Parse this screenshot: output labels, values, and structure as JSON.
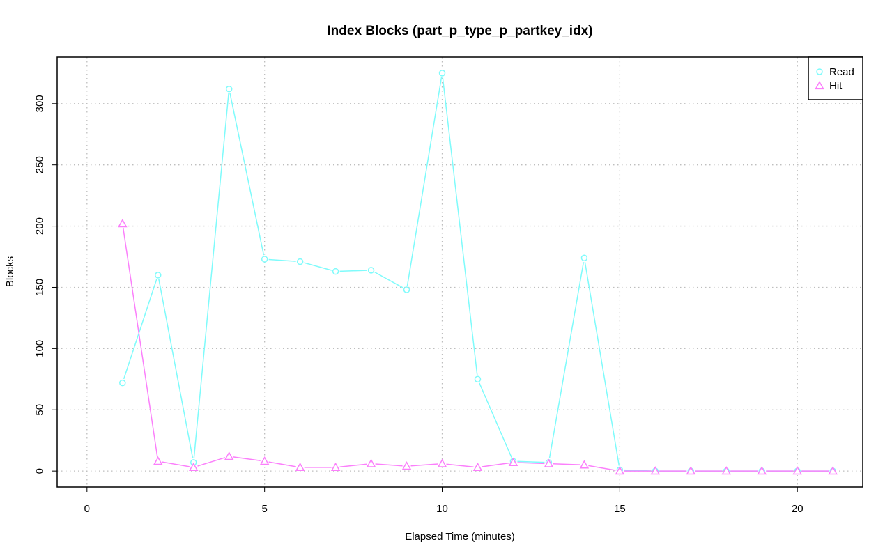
{
  "chart_data": {
    "type": "line",
    "title": "Index Blocks (part_p_type_p_partkey_idx)",
    "xlabel": "Elapsed Time (minutes)",
    "ylabel": "Blocks",
    "xlim": [
      -0.84,
      21.84
    ],
    "ylim": [
      -13,
      338
    ],
    "xticks": [
      0,
      5,
      10,
      15,
      20
    ],
    "yticks": [
      0,
      50,
      100,
      150,
      200,
      250,
      300
    ],
    "grid": true,
    "legend_position": "top-right",
    "x": [
      1,
      2,
      3,
      4,
      5,
      6,
      7,
      8,
      9,
      10,
      11,
      12,
      13,
      14,
      15,
      16,
      17,
      18,
      19,
      20,
      21
    ],
    "series": [
      {
        "name": "Read",
        "color": "#7ffbfb",
        "marker": "circle",
        "values": [
          72,
          160,
          7,
          312,
          173,
          171,
          163,
          164,
          148,
          325,
          75,
          8,
          7,
          174,
          1,
          0,
          0,
          0,
          0,
          0,
          0
        ]
      },
      {
        "name": "Hit",
        "color": "#fb7ffb",
        "marker": "triangle",
        "values": [
          202,
          8,
          3,
          12,
          8,
          3,
          3,
          6,
          4,
          6,
          3,
          7,
          6,
          5,
          0,
          0,
          0,
          0,
          0,
          0,
          0
        ]
      }
    ]
  }
}
